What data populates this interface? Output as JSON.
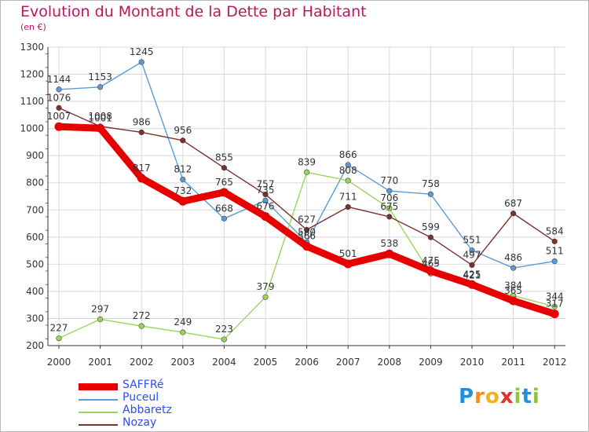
{
  "title": "Evolution du Montant de la Dette par Habitant",
  "unit": "(en €)",
  "logo": {
    "letters": [
      "P",
      "r",
      "o",
      "x",
      "i",
      "t",
      "i"
    ],
    "colors": [
      "#1f8fe0",
      "#f28a1c",
      "#f2b21c",
      "#e0312c",
      "#8cc63e",
      "#1f8fe0",
      "#8cc63e"
    ]
  },
  "chart_data": {
    "type": "line",
    "x": [
      "2000",
      "2001",
      "2002",
      "2003",
      "2004",
      "2005",
      "2006",
      "2007",
      "2008",
      "2009",
      "2010",
      "2011",
      "2012"
    ],
    "ylim": [
      200,
      1300
    ],
    "yticks": [
      200,
      300,
      400,
      500,
      600,
      700,
      800,
      900,
      1000,
      1100,
      1200,
      1300
    ],
    "grid": true,
    "legend_position": "bottom-left",
    "series": [
      {
        "name": "SAFFRé",
        "color": "#e60000",
        "values": [
          1007,
          1001,
          817,
          732,
          765,
          676,
          566,
          501,
          538,
          475,
          425,
          365,
          317
        ],
        "labels": [
          "1007",
          "1001",
          "817",
          "732",
          "765",
          "676",
          "566",
          "501",
          "538",
          "475",
          "425",
          "365",
          "317"
        ]
      },
      {
        "name": "Puceul",
        "color": "#5b9bd5",
        "values": [
          1144,
          1153,
          1245,
          812,
          668,
          735,
          580,
          866,
          770,
          758,
          551,
          486,
          511
        ],
        "labels": [
          "1144",
          "1153",
          "1245",
          "812",
          "668",
          "735",
          "580",
          "866",
          "770",
          "758",
          "551",
          "486",
          "511"
        ]
      },
      {
        "name": "Abbaretz",
        "color": "#9ad65a",
        "values": [
          227,
          297,
          272,
          249,
          223,
          379,
          839,
          808,
          706,
          465,
          421,
          384,
          344
        ],
        "labels": [
          "227",
          "297",
          "272",
          "249",
          "223",
          "379",
          "839",
          "808",
          "706",
          "465",
          "421",
          "384",
          "344"
        ]
      },
      {
        "name": "Nozay",
        "color": "#7b2f2f",
        "values": [
          1076,
          1008,
          986,
          956,
          855,
          757,
          627,
          711,
          675,
          599,
          497,
          687,
          584
        ],
        "labels": [
          "1076",
          "1008",
          "986",
          "956",
          "855",
          "757",
          "627",
          "711",
          "675",
          "599",
          "497",
          "687",
          "584"
        ]
      }
    ]
  }
}
